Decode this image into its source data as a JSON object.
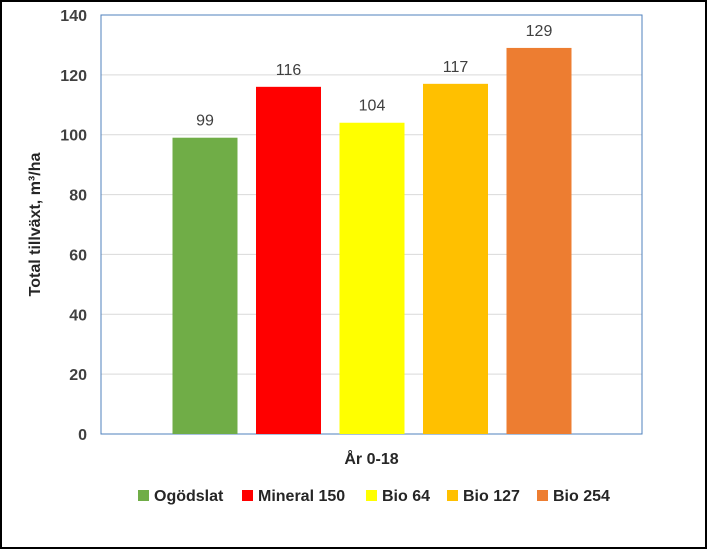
{
  "chart_data": {
    "type": "bar",
    "title": "",
    "xlabel": "År 0-18",
    "ylabel": "Total tillväxt, m³/ha",
    "ylim": [
      0,
      140
    ],
    "yticks": [
      0,
      20,
      40,
      60,
      80,
      100,
      120,
      140
    ],
    "grid": true,
    "legend_position": "bottom",
    "categories": [
      "Ogödslat",
      "Mineral 150",
      "Bio 64",
      "Bio 127",
      "Bio 254"
    ],
    "values": [
      99,
      116,
      104,
      117,
      129
    ],
    "data_labels": [
      "99",
      "116",
      "104",
      "117",
      "129"
    ],
    "colors": [
      "#70ad47",
      "#ff0000",
      "#ffff00",
      "#ffc000",
      "#ed7d31"
    ]
  }
}
